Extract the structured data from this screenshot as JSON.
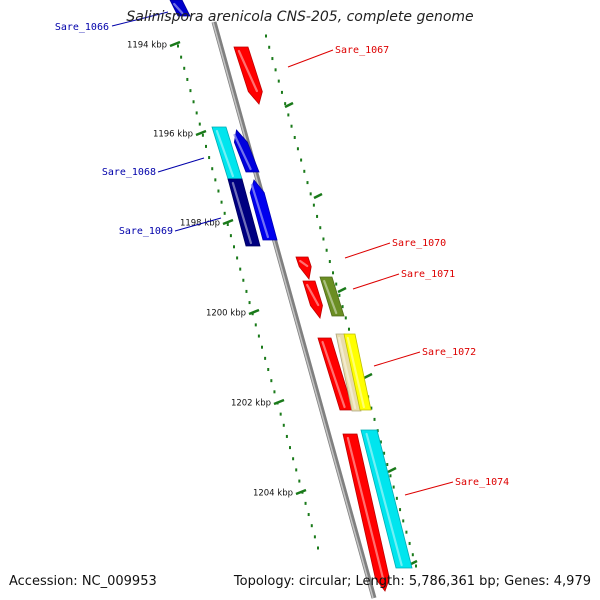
{
  "title": "Salinispora arenicola CNS-205, complete genome",
  "accession_text": "Accession: NC_009953",
  "summary_text": "Topology: circular; Length: 5,786,361 bp; Genes: 4,979",
  "colors": {
    "backbone": "#808080",
    "tick": "#1a7a1a",
    "forward_label": "#dd0000",
    "reverse_label": "#0000aa"
  },
  "scale": {
    "ticks": [
      {
        "kbp": 1194,
        "label": "1194 kbp"
      },
      {
        "kbp": 1196,
        "label": "1196 kbp"
      },
      {
        "kbp": 1198,
        "label": "1198 kbp"
      },
      {
        "kbp": 1200,
        "label": "1200 kbp"
      },
      {
        "kbp": 1202,
        "label": "1202 kbp"
      },
      {
        "kbp": 1204,
        "label": "1204 kbp"
      }
    ]
  },
  "genes": [
    {
      "strand": "reverse",
      "color": "#0000cc",
      "label": "Sare_1066",
      "icon": "gene-arrow"
    },
    {
      "strand": "forward",
      "color": "#ff0000",
      "label": "Sare_1067",
      "icon": "gene-arrow"
    },
    {
      "strand": "reverse",
      "color": "#00e5ee",
      "label": "",
      "icon": "gene-box"
    },
    {
      "strand": "reverse",
      "color": "#0000dd",
      "label": "",
      "icon": "gene-arrow"
    },
    {
      "strand": "reverse",
      "color": "#000080",
      "label": "Sare_1068",
      "icon": "gene-box"
    },
    {
      "strand": "reverse",
      "color": "#0000ee",
      "label": "Sare_1069",
      "icon": "gene-arrow"
    },
    {
      "strand": "forward",
      "color": "#ff0000",
      "label": "Sare_1070",
      "icon": "gene-arrow"
    },
    {
      "strand": "forward",
      "color": "#ff0000",
      "label": "",
      "icon": "gene-arrow"
    },
    {
      "strand": "forward",
      "color": "#6b8e23",
      "label": "Sare_1071",
      "icon": "gene-box"
    },
    {
      "strand": "forward",
      "color": "#ff0000",
      "label": "",
      "icon": "gene-box"
    },
    {
      "strand": "forward",
      "color": "#e8dcaa",
      "label": "",
      "icon": "gene-box"
    },
    {
      "strand": "forward",
      "color": "#ffff00",
      "label": "Sare_1072",
      "icon": "gene-box"
    },
    {
      "strand": "forward",
      "color": "#ff0000",
      "label": "",
      "icon": "gene-arrow"
    },
    {
      "strand": "forward",
      "color": "#00e5ee",
      "label": "Sare_1074",
      "icon": "gene-arrow"
    }
  ]
}
